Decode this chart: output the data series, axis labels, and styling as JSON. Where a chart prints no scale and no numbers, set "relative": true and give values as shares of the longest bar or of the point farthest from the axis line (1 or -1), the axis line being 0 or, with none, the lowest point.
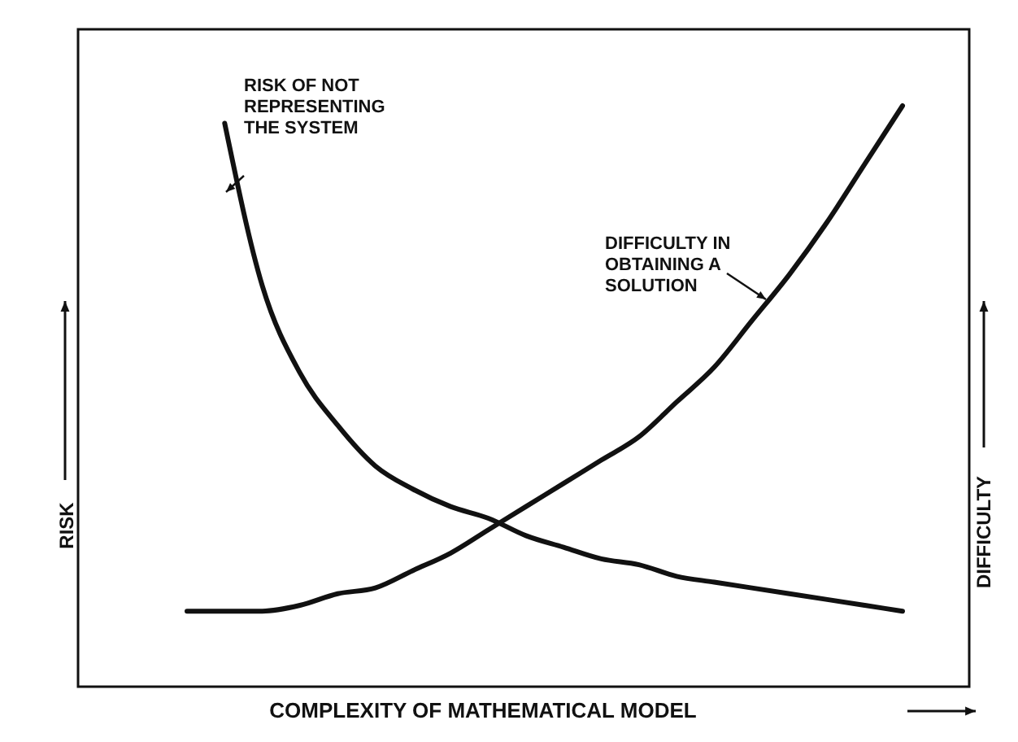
{
  "chart_data": {
    "type": "line",
    "relative": true,
    "xlabel": "COMPLEXITY OF MATHEMATICAL MODEL",
    "ylabel": "RISK",
    "y2label": "DIFFICULTY",
    "categories": [
      null,
      null,
      null,
      null,
      null,
      null,
      null,
      null,
      null,
      null,
      null,
      null,
      null,
      null,
      null,
      null,
      null,
      null,
      null,
      null
    ],
    "series": [
      {
        "color": "#111111",
        "values": [
          null,
          0.97,
          0.69,
          0.54,
          0.45,
          0.38,
          0.34,
          0.31,
          0.29,
          0.26,
          0.24,
          0.22,
          0.21,
          0.19,
          0.18,
          0.17,
          0.16,
          0.15,
          0.14,
          0.13
        ]
      },
      {
        "color": "#111111",
        "values": [
          0.13,
          0.13,
          0.13,
          0.14,
          0.16,
          0.17,
          0.2,
          0.23,
          0.27,
          0.31,
          0.35,
          0.39,
          0.43,
          0.49,
          0.55,
          0.63,
          0.71,
          0.8,
          0.9,
          1
        ]
      }
    ],
    "annotations": [
      "RISK OF NOT\nREPRESENTING\nTHE SYSTEM",
      "DIFFICULTY IN\nOBTAINING A\nSOLUTION"
    ],
    "line_style": "solid",
    "marker": "none"
  }
}
